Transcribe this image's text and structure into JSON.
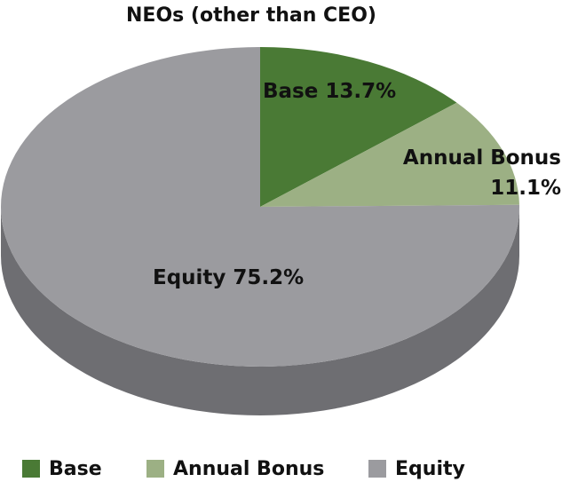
{
  "chart_data": {
    "type": "pie",
    "title": "NEOs (other than CEO)",
    "categories": [
      "Base",
      "Annual Bonus",
      "Equity"
    ],
    "values": [
      13.7,
      11.1,
      75.2
    ],
    "value_labels": [
      "Base 13.7%",
      "Annual Bonus 11.1%",
      "Equity 75.2%"
    ],
    "colors": [
      "#4a7a35",
      "#9cb084",
      "#9b9b9f"
    ],
    "legend": "bottom"
  }
}
